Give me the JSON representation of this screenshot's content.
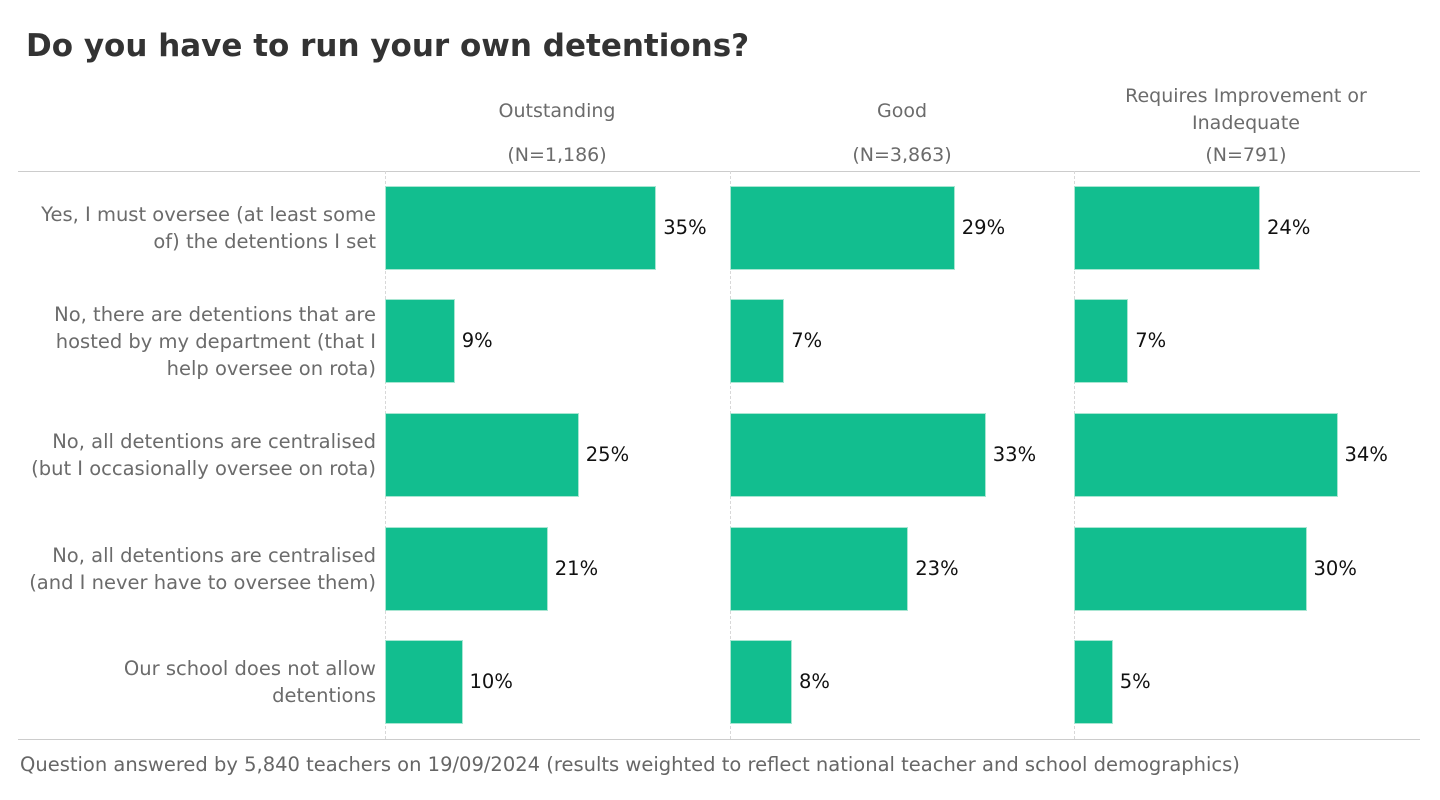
{
  "chart_data": {
    "type": "bar",
    "orientation": "horizontal",
    "title": "Do you have to run your own detentions?",
    "categories": [
      "Yes, I must oversee (at least some of) the detentions I set",
      "No, there are detentions that are hosted by my department (that I help oversee on rota)",
      "No, all detentions are centralised (but I occasionally oversee on rota)",
      "No, all detentions are centralised (and I never have to oversee them)",
      "Our school does not allow detentions"
    ],
    "series": [
      {
        "name": "Outstanding",
        "n_label": "(N=1,186)",
        "color": "#12be8f",
        "values": [
          35,
          9,
          25,
          21,
          10
        ],
        "value_labels": [
          "35%",
          "9%",
          "25%",
          "21%",
          "10%"
        ]
      },
      {
        "name": "Good",
        "n_label": "(N=3,863)",
        "color": "#12be8f",
        "values": [
          29,
          7,
          33,
          23,
          8
        ],
        "value_labels": [
          "29%",
          "7%",
          "33%",
          "23%",
          "8%"
        ]
      },
      {
        "name": "Requires Improvement or Inadequate",
        "n_label": "(N=791)",
        "color": "#12be8f",
        "values": [
          24,
          7,
          34,
          30,
          5
        ],
        "value_labels": [
          "24%",
          "7%",
          "34%",
          "30%",
          "5%"
        ]
      }
    ],
    "note": "Question answered by 5,840 teachers on 19/09/2024 (results weighted to reflect national teacher and school demographics)"
  }
}
